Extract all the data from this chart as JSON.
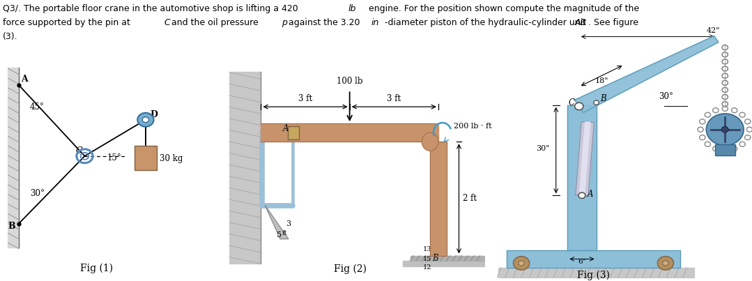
{
  "text_line1": "Q3/. The portable floor crane in the automotive shop is lifting a 420 ",
  "text_line1b": "lb",
  "text_line1c": " engine. For the position shown compute the magnitude of the",
  "text_line2a": "force supported by the pin at ",
  "text_line2b": "C",
  "text_line2c": "and the oil pressure ",
  "text_line2d": "p",
  "text_line2e": "against the 3.20 ",
  "text_line2f": "in",
  "text_line2g": "-diameter piston of the hydraulic-cylinder unit ",
  "text_line2h": "AB",
  "text_line2i": ". See figure",
  "text_line3": "(3).",
  "fig1_label": "Fig (1)",
  "fig2_label": "Fig (2)",
  "fig3_label": "Fig (3)",
  "wall_hatch_color": "#c0c0c0",
  "wall_fill": "#d8d8d8",
  "beam_color": "#c8936a",
  "beam_edge": "#a07050",
  "blue_light": "#9bbfd8",
  "blue_med": "#7aaac8",
  "blue_dark": "#4a8ab0",
  "crane_body": "#8dbfd8",
  "crane_edge": "#5a9ab8",
  "hyd_cyl": "#c8c8d8",
  "hyd_cyl2": "#b0b0c8",
  "weight_fill": "#c8956a",
  "chain_color": "#888888",
  "ground_fill": "#b8a878",
  "ground_edge": "#888860"
}
